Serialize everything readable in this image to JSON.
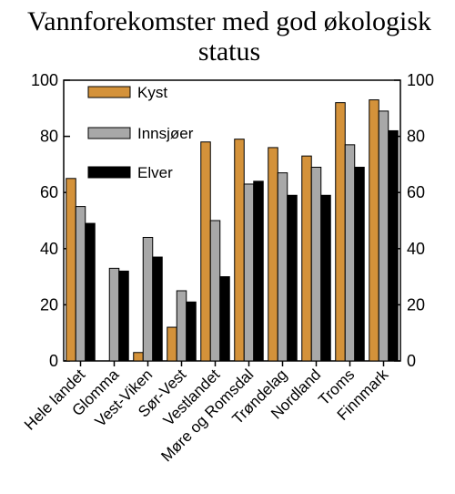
{
  "chart_data": {
    "type": "bar",
    "title": "Vannforekomster med god økologisk status",
    "title_lines": [
      "Vannforekomster med god økologisk",
      "status"
    ],
    "categories": [
      "Hele landet",
      "Glomma",
      "Vest-Viken",
      "Sør-Vest",
      "Vestlandet",
      "Møre og Romsdal",
      "Trøndelag",
      "Nordland",
      "Troms",
      "Finnmark"
    ],
    "series": [
      {
        "name": "Kyst",
        "color": "#D4923A",
        "values": [
          65,
          0,
          3,
          12,
          78,
          79,
          76,
          73,
          92,
          93
        ]
      },
      {
        "name": "Innsjøer",
        "color": "#A8A8A8",
        "values": [
          55,
          33,
          44,
          25,
          50,
          63,
          67,
          69,
          77,
          89
        ]
      },
      {
        "name": "Elver",
        "color": "#000000",
        "values": [
          49,
          32,
          37,
          21,
          30,
          64,
          59,
          59,
          69,
          82
        ]
      }
    ],
    "ylim": [
      0,
      100
    ],
    "yticks": [
      "0",
      "20",
      "40",
      "60",
      "80",
      "100"
    ],
    "xlabel": "",
    "ylabel": "",
    "grid": false,
    "legend_position": "top-left",
    "right_axis": true
  }
}
